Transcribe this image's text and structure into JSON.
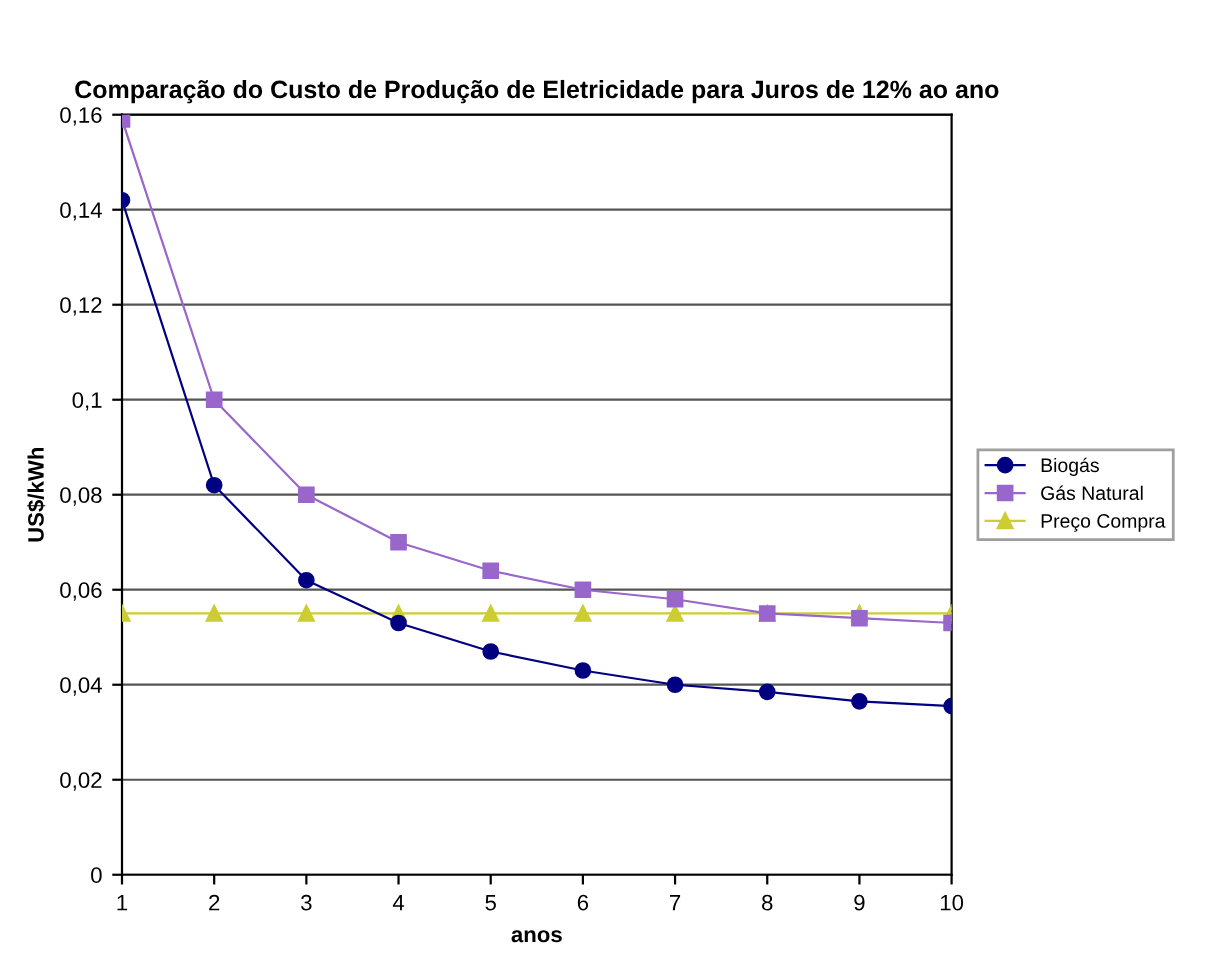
{
  "chart_data": {
    "type": "line",
    "title": "Comparação do Custo de Produção de Eletricidade para Juros de 12% ao ano",
    "xlabel": "anos",
    "ylabel": "US$/kWh",
    "x": [
      1,
      2,
      3,
      4,
      5,
      6,
      7,
      8,
      9,
      10
    ],
    "series": [
      {
        "name": "Biogás",
        "color": "#000080",
        "marker": "circle",
        "values": [
          0.142,
          0.082,
          0.062,
          0.053,
          0.047,
          0.043,
          0.04,
          0.0385,
          0.0365,
          0.0355
        ]
      },
      {
        "name": "Gás Natural",
        "color": "#9966cc",
        "marker": "square",
        "values": [
          0.159,
          0.1,
          0.08,
          0.07,
          0.064,
          0.06,
          0.058,
          0.055,
          0.054,
          0.053
        ]
      },
      {
        "name": "Preço Compra",
        "color": "#cccc33",
        "marker": "triangle",
        "values": [
          0.055,
          0.055,
          0.055,
          0.055,
          0.055,
          0.055,
          0.055,
          0.055,
          0.055,
          0.055
        ]
      }
    ],
    "xlim": [
      1,
      10
    ],
    "xticks": [
      1,
      2,
      3,
      4,
      5,
      6,
      7,
      8,
      9,
      10
    ],
    "ylim": [
      0,
      0.16
    ],
    "yticks": [
      0,
      {
        "value": 0.02,
        "label": "0,02"
      },
      {
        "value": 0.04,
        "label": "0,04"
      },
      {
        "value": 0.06,
        "label": "0,06"
      },
      {
        "value": 0.08,
        "label": "0,08"
      },
      {
        "value": 0.1,
        "label": "0,1"
      },
      {
        "value": 0.12,
        "label": "0,12"
      },
      {
        "value": 0.14,
        "label": "0,14"
      },
      {
        "value": 0.16,
        "label": "0,16"
      }
    ],
    "grid": "y",
    "legend": "right"
  }
}
